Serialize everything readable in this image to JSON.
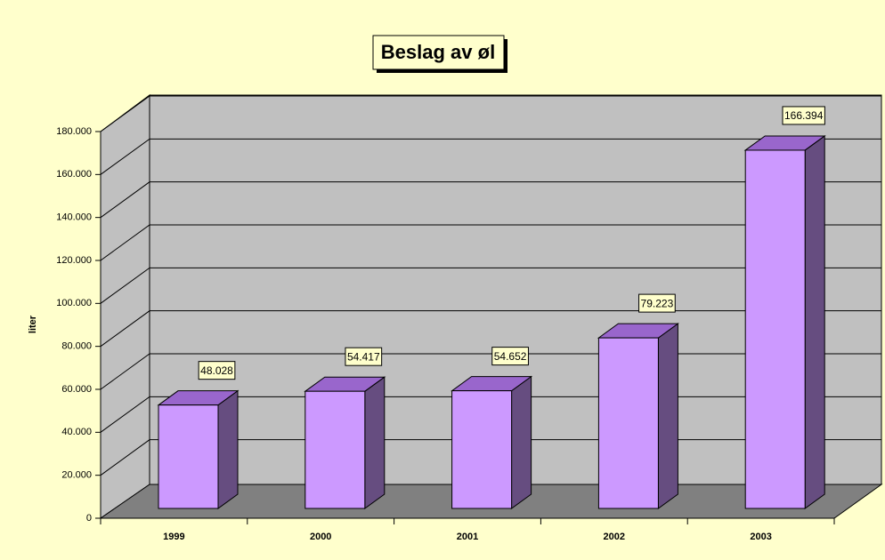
{
  "chart_data": {
    "type": "bar3d",
    "title": "Beslag av øl",
    "y_label": "liter",
    "categories": [
      "1999",
      "2000",
      "2001",
      "2002",
      "2003"
    ],
    "values": [
      48028,
      54417,
      54652,
      79223,
      166394
    ],
    "value_labels": [
      "48.028",
      "54.417",
      "54.652",
      "79.223",
      "166.394"
    ],
    "color": "#cc99ff",
    "ylim": [
      0,
      180000
    ],
    "yticks": [
      0,
      {
        "value": 20000,
        "label": "20.000"
      },
      {
        "value": 40000,
        "label": "40.000"
      },
      {
        "value": 60000,
        "label": "60.000"
      },
      {
        "value": 80000,
        "label": "80.000"
      },
      {
        "value": 100000,
        "label": "100.000"
      },
      {
        "value": 120000,
        "label": "120.000"
      },
      {
        "value": 140000,
        "label": "140.000"
      },
      {
        "value": 160000,
        "label": "160.000"
      },
      {
        "value": 180000,
        "label": "180.000"
      }
    ],
    "grid": true
  }
}
